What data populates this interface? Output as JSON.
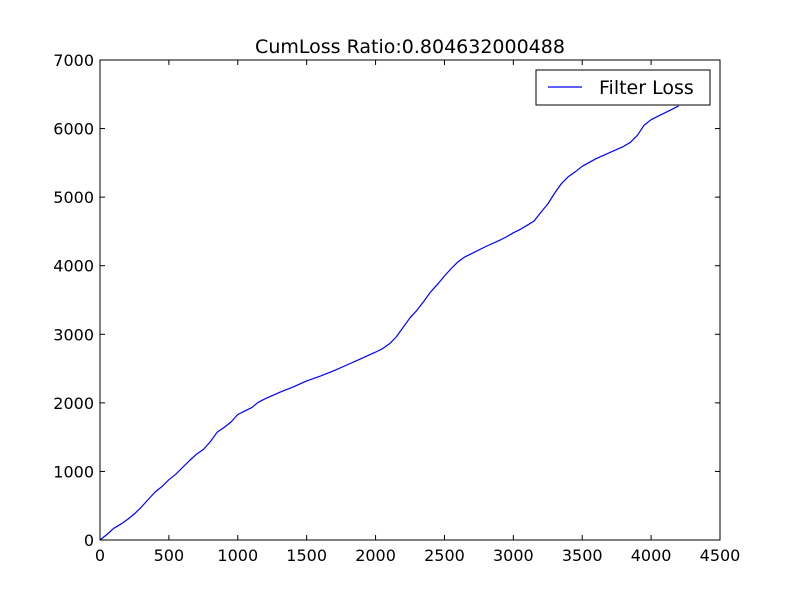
{
  "chart_data": {
    "type": "line",
    "title": "CumLoss Ratio:0.804632000488",
    "xlabel": "",
    "ylabel": "",
    "xlim": [
      0,
      4500
    ],
    "ylim": [
      0,
      7000
    ],
    "xticks": [
      0,
      500,
      1000,
      1500,
      2000,
      2500,
      3000,
      3500,
      4000,
      4500
    ],
    "yticks": [
      0,
      1000,
      2000,
      3000,
      4000,
      5000,
      6000,
      7000
    ],
    "xtick_labels": [
      "0",
      "500",
      "1000",
      "1500",
      "2000",
      "2500",
      "3000",
      "3500",
      "4000",
      "4500"
    ],
    "ytick_labels": [
      "0",
      "1000",
      "2000",
      "3000",
      "4000",
      "5000",
      "6000",
      "7000"
    ],
    "grid": false,
    "legend_position": "top-right",
    "series": [
      {
        "name": "Filter Loss",
        "color": "#0000ff",
        "x": [
          0,
          50,
          100,
          150,
          200,
          250,
          300,
          350,
          400,
          450,
          500,
          550,
          600,
          650,
          700,
          750,
          800,
          850,
          900,
          950,
          1000,
          1050,
          1100,
          1150,
          1200,
          1300,
          1400,
          1500,
          1600,
          1700,
          1800,
          1900,
          2000,
          2050,
          2100,
          2150,
          2200,
          2250,
          2300,
          2350,
          2400,
          2450,
          2500,
          2550,
          2600,
          2650,
          2700,
          2800,
          2900,
          2950,
          3000,
          3050,
          3100,
          3150,
          3200,
          3250,
          3300,
          3350,
          3400,
          3450,
          3500,
          3600,
          3700,
          3800,
          3850,
          3900,
          3950,
          4000,
          4050,
          4100,
          4150,
          4200
        ],
        "values": [
          0,
          80,
          170,
          230,
          300,
          380,
          480,
          590,
          700,
          780,
          880,
          960,
          1060,
          1160,
          1250,
          1320,
          1430,
          1570,
          1640,
          1720,
          1830,
          1880,
          1930,
          2010,
          2060,
          2150,
          2230,
          2320,
          2390,
          2470,
          2560,
          2650,
          2740,
          2790,
          2860,
          2960,
          3100,
          3240,
          3350,
          3480,
          3620,
          3730,
          3850,
          3960,
          4060,
          4130,
          4180,
          4280,
          4370,
          4420,
          4480,
          4530,
          4590,
          4650,
          4780,
          4900,
          5060,
          5200,
          5300,
          5370,
          5450,
          5560,
          5650,
          5740,
          5800,
          5900,
          6050,
          6130,
          6180,
          6230,
          6280,
          6330
        ]
      }
    ]
  }
}
